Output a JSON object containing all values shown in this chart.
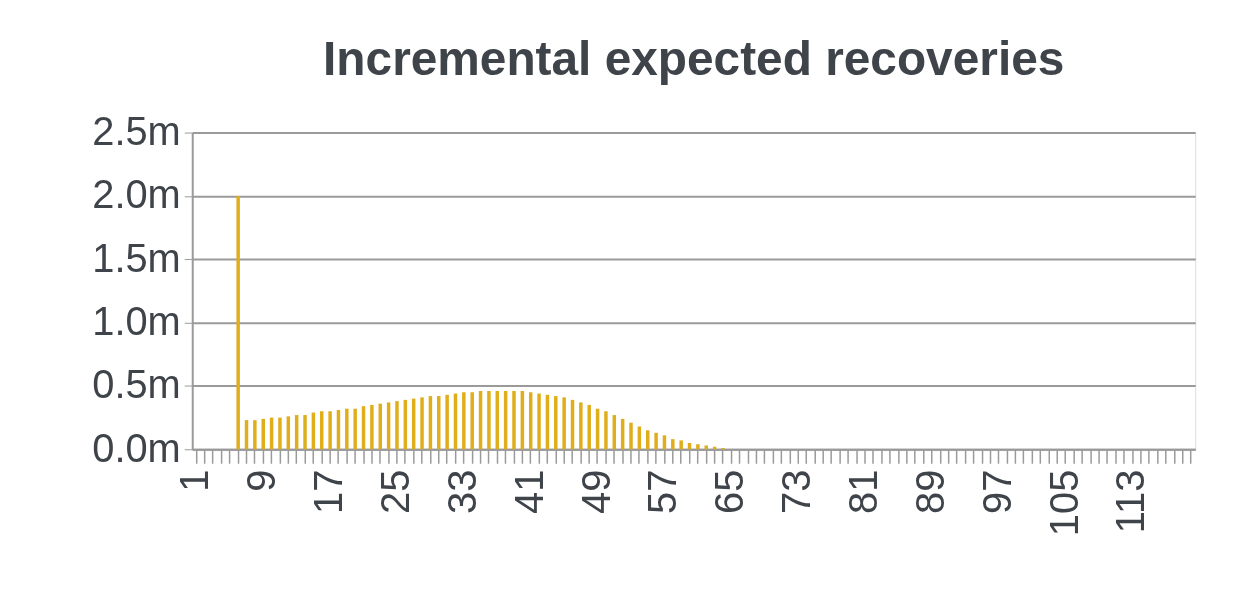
{
  "chart_data": {
    "type": "bar",
    "title": "Incremental expected recoveries",
    "categories": [
      "1",
      null,
      null,
      null,
      null,
      null,
      null,
      null,
      "9",
      null,
      null,
      null,
      null,
      null,
      null,
      null,
      "17",
      null,
      null,
      null,
      null,
      null,
      null,
      null,
      "25",
      null,
      null,
      null,
      null,
      null,
      null,
      null,
      "33",
      null,
      null,
      null,
      null,
      null,
      null,
      null,
      "41",
      null,
      null,
      null,
      null,
      null,
      null,
      null,
      "49",
      null,
      null,
      null,
      null,
      null,
      null,
      null,
      "57",
      null,
      null,
      null,
      null,
      null,
      null,
      null,
      "65",
      null,
      null,
      null,
      null,
      null,
      null,
      null,
      "73",
      null,
      null,
      null,
      null,
      null,
      null,
      null,
      "81",
      null,
      null,
      null,
      null,
      null,
      null,
      null,
      "89",
      null,
      null,
      null,
      null,
      null,
      null,
      null,
      "97",
      null,
      null,
      null,
      null,
      null,
      null,
      null,
      "105",
      null,
      null,
      null,
      null,
      null,
      null,
      null,
      "113",
      null,
      null,
      null,
      null,
      null,
      null,
      null
    ],
    "values": [
      0,
      0,
      0,
      0,
      0,
      2.0,
      0.23,
      0.23,
      0.24,
      0.25,
      0.25,
      0.26,
      0.27,
      0.27,
      0.29,
      0.3,
      0.3,
      0.31,
      0.32,
      0.32,
      0.34,
      0.35,
      0.36,
      0.37,
      0.38,
      0.39,
      0.4,
      0.41,
      0.42,
      0.42,
      0.43,
      0.44,
      0.45,
      0.45,
      0.46,
      0.46,
      0.46,
      0.46,
      0.46,
      0.46,
      0.45,
      0.44,
      0.43,
      0.42,
      0.41,
      0.39,
      0.37,
      0.35,
      0.32,
      0.3,
      0.27,
      0.24,
      0.21,
      0.18,
      0.15,
      0.13,
      0.11,
      0.08,
      0.07,
      0.05,
      0.04,
      0.03,
      0.02,
      0.01,
      0,
      0,
      0,
      0,
      0,
      0,
      0,
      0,
      0,
      0,
      0,
      0,
      0,
      0,
      0,
      0,
      0,
      0,
      0,
      0,
      0,
      0,
      0,
      0,
      0,
      0,
      0,
      0,
      0,
      0,
      0,
      0,
      0,
      0,
      0,
      0,
      0,
      0,
      0,
      0,
      0,
      0,
      0,
      0,
      0,
      0,
      0,
      0,
      0,
      0,
      0,
      0,
      0,
      0,
      0,
      0
    ],
    "color": "#dfae1a",
    "ylim": [
      0,
      2.5
    ],
    "yticks": [
      {
        "value": 0,
        "label": "0.0m"
      },
      {
        "value": 0.5,
        "label": "0.5m"
      },
      {
        "value": 1.0,
        "label": "1.0m"
      },
      {
        "value": 1.5,
        "label": "1.5m"
      },
      {
        "value": 2.0,
        "label": "2.0m"
      },
      {
        "value": 2.5,
        "label": "2.5m"
      }
    ],
    "grid": "y"
  }
}
